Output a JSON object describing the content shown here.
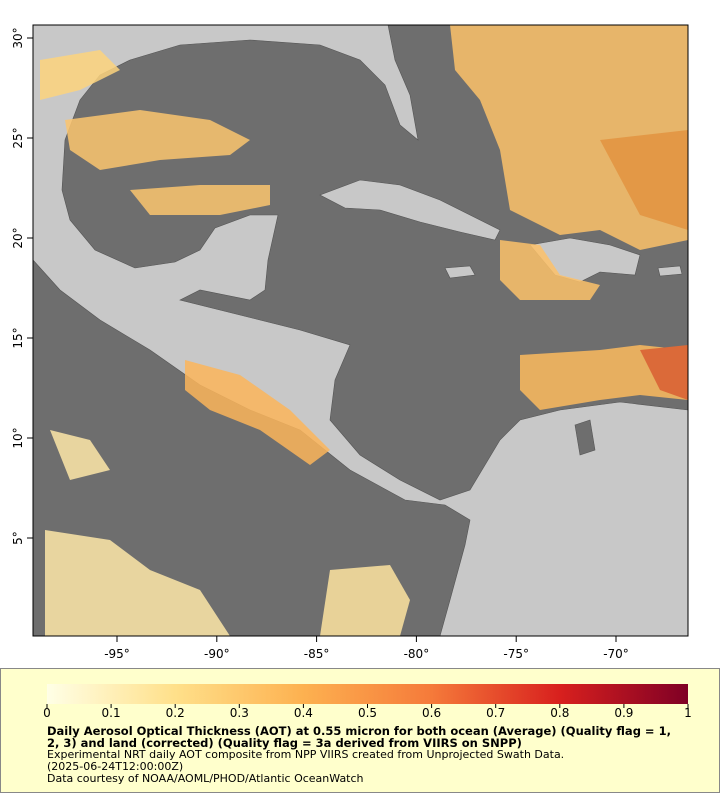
{
  "map": {
    "lon_ticks": [
      {
        "value": -95,
        "label": "-95°"
      },
      {
        "value": -90,
        "label": "-90°"
      },
      {
        "value": -85,
        "label": "-85°"
      },
      {
        "value": -80,
        "label": "-80°"
      },
      {
        "value": -75,
        "label": "-75°"
      },
      {
        "value": -70,
        "label": "-70°"
      }
    ],
    "lat_ticks": [
      {
        "value": 5,
        "label": "5°"
      },
      {
        "value": 10,
        "label": "10°"
      },
      {
        "value": 15,
        "label": "15°"
      },
      {
        "value": 20,
        "label": "20°"
      },
      {
        "value": 25,
        "label": "25°"
      },
      {
        "value": 30,
        "label": "30°"
      }
    ],
    "colorbar": {
      "range": [
        0,
        1
      ],
      "ticks": [
        0,
        0.1,
        0.2,
        0.3,
        0.4,
        0.5,
        0.6,
        0.7,
        0.8,
        0.9,
        1
      ]
    },
    "caption": {
      "title": "Daily Aerosol Optical Thickness (AOT) at 0.55 micron for both ocean (Average) (Quality flag = 1, 2, 3) and land (corrected) (Quality flag = 3a derived from VIIRS on SNPP)",
      "lines": [
        "Experimental NRT daily AOT composite from NPP VIIRS created from Unprojected Swath Data.",
        "(2025-06-24T12:00:00Z)",
        "Data courtesy of NOAA/AOML/PHOD/Atlantic OceanWatch"
      ]
    }
  }
}
